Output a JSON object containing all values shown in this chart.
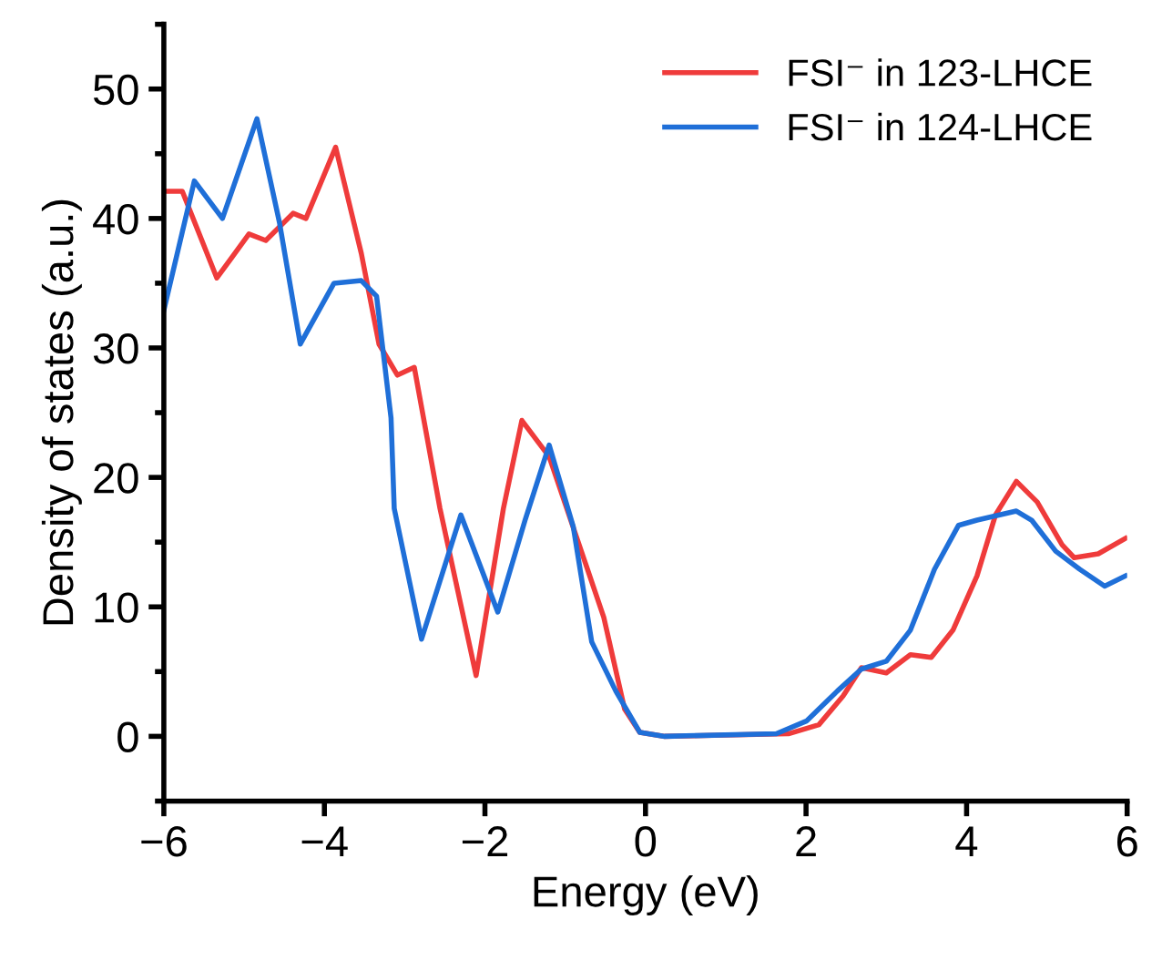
{
  "chart_data": {
    "type": "line",
    "xlabel": "Energy (eV)",
    "ylabel": "Density of states (a.u.)",
    "xlim": [
      -6,
      6
    ],
    "xticks": [
      -6,
      -4,
      -2,
      0,
      2,
      4,
      6
    ],
    "ylim": [
      -5,
      55
    ],
    "yticks": [
      {
        "value": -5,
        "label": null
      },
      0,
      {
        "value": 5,
        "label": null
      },
      10,
      {
        "value": 15,
        "label": null
      },
      20,
      {
        "value": 25,
        "label": null
      },
      30,
      {
        "value": 35,
        "label": null
      },
      40,
      {
        "value": 45,
        "label": null
      },
      50,
      {
        "value": 55,
        "label": null
      }
    ],
    "grid": false,
    "legend": "top right",
    "marker": "none",
    "line_style": "solid",
    "series": [
      {
        "name": "FSI⁻ in 123-LHCE",
        "color": "#ef3b3b",
        "x": [
          -6,
          -5.77,
          -5.34,
          -4.94,
          -4.73,
          -4.39,
          -4.23,
          -3.86,
          -3.54,
          -3.32,
          -3.09,
          -2.88,
          -2.56,
          -2.11,
          -1.77,
          -1.54,
          -1.2,
          -0.75,
          -0.52,
          -0.26,
          -0.07,
          0.24,
          1.78,
          2.16,
          2.46,
          2.69,
          3.0,
          3.3,
          3.56,
          3.83,
          4.13,
          4.36,
          4.62,
          4.88,
          5.19,
          5.34,
          5.64,
          5.98
        ],
        "values": [
          42.1,
          42.1,
          35.4,
          38.8,
          38.3,
          40.4,
          40.0,
          45.5,
          37.3,
          30.3,
          27.9,
          28.5,
          17.6,
          4.7,
          17.6,
          24.4,
          21.6,
          13.4,
          9.2,
          2.1,
          0.3,
          0,
          0.2,
          0.9,
          3.1,
          5.3,
          4.9,
          6.3,
          6.1,
          8.2,
          12.4,
          17.1,
          19.7,
          18.1,
          14.8,
          13.8,
          14.1,
          15.3
        ]
      },
      {
        "name": "FSI⁻ in 124-LHCE",
        "color": "#1f6fd8",
        "x": [
          -6,
          -5.62,
          -5.27,
          -4.84,
          -4.56,
          -4.3,
          -3.88,
          -3.54,
          -3.35,
          -3.17,
          -3.13,
          -2.79,
          -2.3,
          -1.84,
          -1.5,
          -1.2,
          -0.9,
          -0.67,
          -0.37,
          -0.07,
          0.24,
          1.63,
          2.01,
          2.39,
          2.69,
          3.0,
          3.3,
          3.6,
          3.9,
          4.13,
          4.62,
          4.81,
          5.11,
          5.41,
          5.72,
          5.98
        ],
        "values": [
          32.9,
          42.9,
          40.0,
          47.7,
          39.7,
          30.3,
          35.0,
          35.2,
          34.0,
          24.6,
          17.6,
          7.5,
          17.1,
          9.6,
          16.7,
          22.5,
          16.2,
          7.3,
          3.5,
          0.3,
          0,
          0.2,
          1.2,
          3.5,
          5.2,
          5.8,
          8.2,
          12.9,
          16.3,
          16.7,
          17.4,
          16.7,
          14.3,
          12.9,
          11.6,
          12.4
        ]
      }
    ]
  }
}
